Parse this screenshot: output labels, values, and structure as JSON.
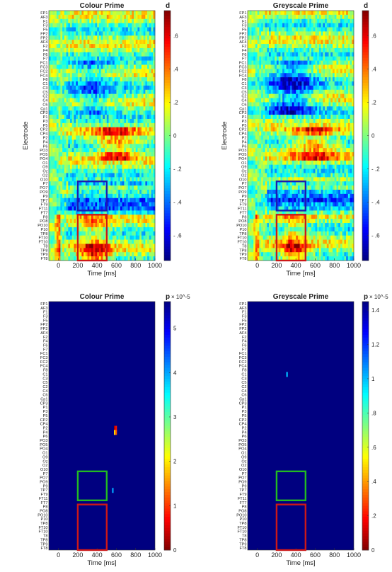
{
  "electrodes": [
    "FP1",
    "AF3",
    "F1",
    "F3",
    "F5",
    "FP2",
    "FP2",
    "AF4",
    "F2",
    "F4",
    "F6",
    "F7",
    "FC1",
    "FC3",
    "FC2",
    "FC4",
    "F8",
    "C1",
    "C3",
    "C5",
    "C2",
    "C4",
    "C6",
    "Cp1",
    "CP3",
    "P1",
    "P3",
    "P5",
    "CP2",
    "CP4",
    "P2",
    "P4",
    "P6",
    "PO3",
    "PO5",
    "PO4",
    "O1",
    "O9",
    "Oz",
    "O2",
    "O10",
    "P7",
    "PO7",
    "PO9",
    "P9",
    "TP7",
    "FT9",
    "FT11",
    "FT7",
    "P8",
    "PO8",
    "PO10",
    "P10",
    "TP8",
    "FT10",
    "FT10",
    "T8",
    "TP8",
    "TP9",
    "FT8"
  ],
  "chart_data": [
    {
      "type": "heatmap",
      "panel": "top-left",
      "title": "Colour Prime",
      "xlabel": "Time [ms]",
      "ylabel": "Electrode",
      "x_range": [
        -100,
        1000
      ],
      "x_ticks": [
        "0",
        "200",
        "400",
        "600",
        "800",
        "1000"
      ],
      "colorbar": {
        "label": "d",
        "colormap": "jet",
        "range": [
          -0.75,
          0.75
        ],
        "ticks": [
          ".6",
          ".4",
          ".2",
          "0",
          "- .2",
          "- .4",
          "- .6"
        ]
      },
      "boxes": [
        {
          "color": "#1c1cb0",
          "time_ms": [
            200,
            500
          ],
          "electrodes": [
            "P7",
            "FT11"
          ]
        },
        {
          "color": "#cc1818",
          "time_ms": [
            200,
            500
          ],
          "electrodes": [
            "P8",
            "FT8"
          ]
        }
      ]
    },
    {
      "type": "heatmap",
      "panel": "top-right",
      "title": "Greyscale Prime",
      "xlabel": "Time [ms]",
      "ylabel": "Electrode",
      "x_range": [
        -100,
        1000
      ],
      "x_ticks": [
        "0",
        "200",
        "400",
        "600",
        "800",
        "1000"
      ],
      "colorbar": {
        "label": "d",
        "colormap": "jet",
        "range": [
          -0.75,
          0.75
        ],
        "ticks": [
          ".6",
          ".4",
          ".2",
          "0",
          "- .2",
          "- .4",
          "- .6"
        ]
      },
      "boxes": [
        {
          "color": "#1c1cb0",
          "time_ms": [
            200,
            500
          ],
          "electrodes": [
            "P7",
            "FT11"
          ]
        },
        {
          "color": "#cc1818",
          "time_ms": [
            200,
            500
          ],
          "electrodes": [
            "P8",
            "FT8"
          ]
        }
      ]
    },
    {
      "type": "heatmap",
      "panel": "bottom-left",
      "title": "Colour Prime",
      "xlabel": "Time [ms]",
      "x_range": [
        -100,
        1000
      ],
      "x_ticks": [
        "0",
        "200",
        "400",
        "600",
        "800",
        "1000"
      ],
      "background_value": 5.6,
      "colorbar": {
        "label": "p",
        "exponent": "× 10^-5",
        "colormap": "jet_reversed",
        "range": [
          0,
          5.6
        ],
        "ticks": [
          "5",
          "4",
          "3",
          "2",
          "1",
          "0"
        ]
      },
      "significant": [
        {
          "time_ms": 575,
          "electrode": "P2",
          "value": 0.3
        },
        {
          "time_ms": 590,
          "electrode": "P2",
          "value": 0.8
        },
        {
          "time_ms": 575,
          "electrode": "P4",
          "value": 1.9
        },
        {
          "time_ms": 590,
          "electrode": "P4",
          "value": 1.2
        },
        {
          "time_ms": 555,
          "electrode": "TP7",
          "value": 4.0
        }
      ],
      "boxes": [
        {
          "color": "#22bb22",
          "time_ms": [
            200,
            500
          ],
          "electrodes": [
            "P7",
            "FT11"
          ]
        },
        {
          "color": "#cc1818",
          "time_ms": [
            200,
            500
          ],
          "electrodes": [
            "P8",
            "FT8"
          ]
        }
      ]
    },
    {
      "type": "heatmap",
      "panel": "bottom-right",
      "title": "Greyscale Prime",
      "xlabel": "Time [ms]",
      "x_range": [
        -100,
        1000
      ],
      "x_ticks": [
        "0",
        "200",
        "400",
        "600",
        "800",
        "1000"
      ],
      "background_value": 1.45,
      "colorbar": {
        "label": "p",
        "exponent": "× 10^-5",
        "colormap": "jet_reversed",
        "range": [
          0,
          1.45
        ],
        "ticks": [
          "1.4",
          "1.2",
          "1",
          ".8",
          ".6",
          ".4",
          ".2",
          "0"
        ]
      },
      "significant": [
        {
          "time_ms": 300,
          "electrode": "C1",
          "value": 1.0
        }
      ],
      "boxes": [
        {
          "color": "#22bb22",
          "time_ms": [
            200,
            500
          ],
          "electrodes": [
            "P7",
            "FT11"
          ]
        },
        {
          "color": "#cc1818",
          "time_ms": [
            200,
            500
          ],
          "electrodes": [
            "P8",
            "FT8"
          ]
        }
      ]
    }
  ]
}
